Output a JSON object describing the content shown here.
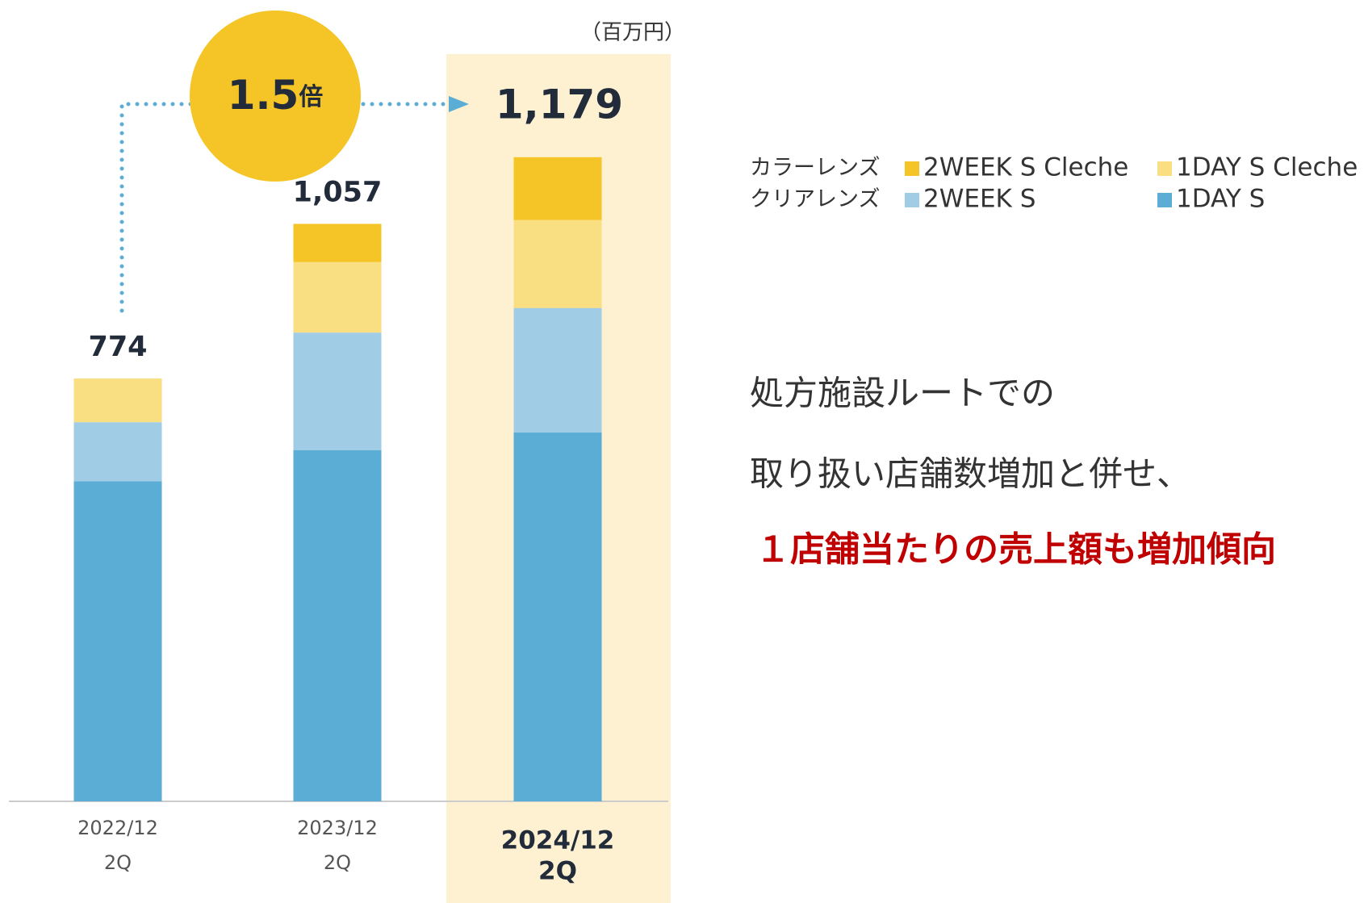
{
  "chart_data": {
    "type": "stacked-bar",
    "unit_label": "（百万円）",
    "categories": [
      [
        "2022/12",
        "2Q"
      ],
      [
        "2023/12",
        "2Q"
      ],
      [
        "2024/12",
        "2Q"
      ]
    ],
    "highlight_index": 2,
    "legend_groups": [
      "カラーレンズ",
      "クリアレンズ"
    ],
    "series": [
      {
        "name": "1DAY S",
        "color": "#5badd6",
        "values": [
          586,
          643,
          675
        ]
      },
      {
        "name": "2WEEK S",
        "color": "#a0cde5",
        "values": [
          108,
          215,
          228
        ]
      },
      {
        "name": "1DAY S Cleche",
        "color": "#f9de82",
        "values": [
          80,
          129,
          161
        ]
      },
      {
        "name": "2WEEK S Cleche",
        "color": "#f5c527",
        "values": [
          0,
          70,
          115
        ]
      }
    ],
    "totals": {
      "values": [
        774,
        1057,
        1179
      ],
      "value_labels": [
        "774",
        "1,057",
        "1,179"
      ]
    },
    "growth": {
      "label": "1.5",
      "unit": "倍"
    }
  },
  "body": {
    "lines": [
      "処方施設ルートでの",
      "取り扱い店舗数増加と併せ、"
    ],
    "emphasis": "１店舗当たりの売上額も増加傾向"
  }
}
